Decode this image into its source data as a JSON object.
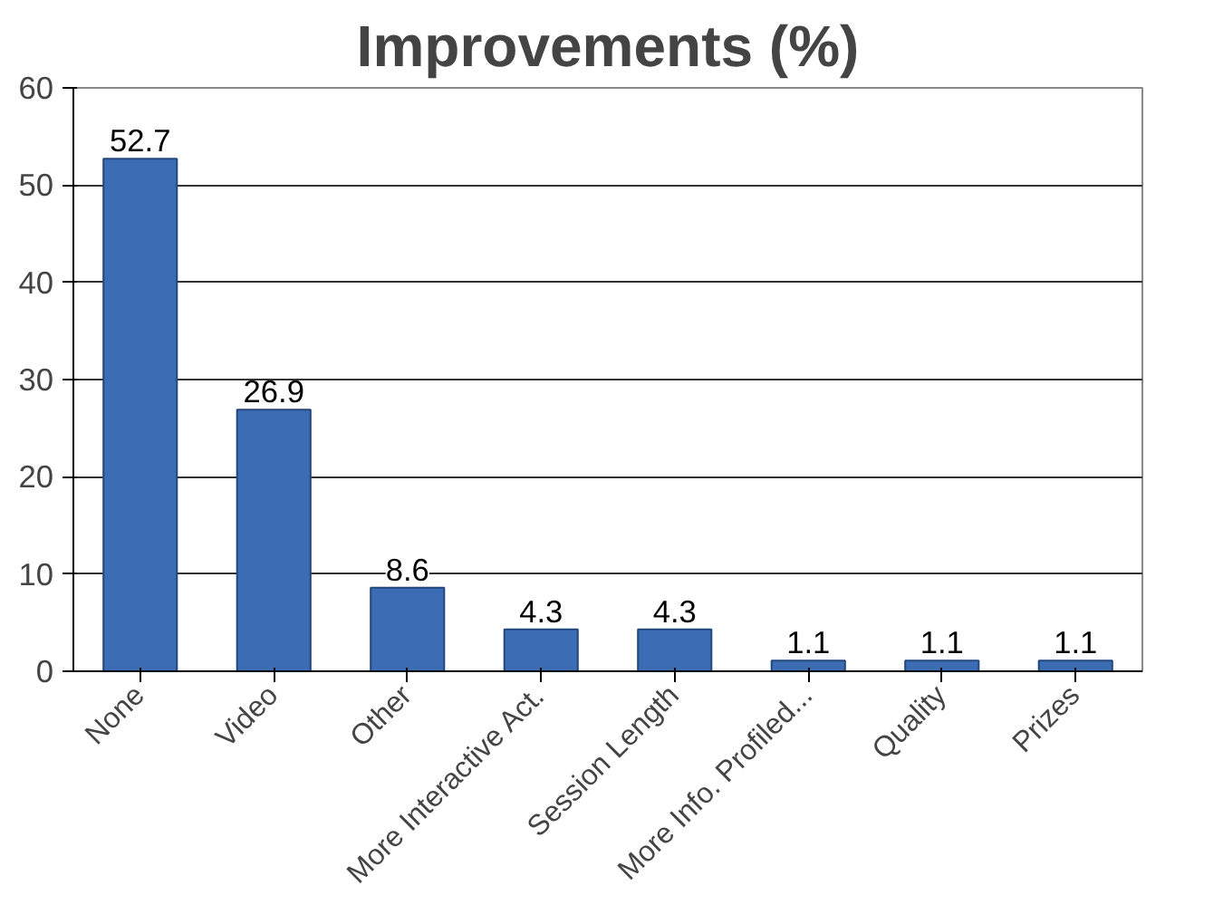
{
  "chart_data": {
    "type": "bar",
    "title": "Improvements (%)",
    "categories": [
      "None",
      "Video",
      "Other",
      "More Interactive Act.",
      "Session Length",
      "More Info. Profiled...",
      "Quality",
      "Prizes"
    ],
    "values": [
      52.7,
      26.9,
      8.6,
      4.3,
      4.3,
      1.1,
      1.1,
      1.1
    ],
    "color": "#3b6cb4",
    "ylim": [
      0,
      60
    ],
    "yticks": [
      0,
      10,
      20,
      30,
      40,
      50,
      60
    ],
    "grid": "y",
    "data_labels": true
  }
}
